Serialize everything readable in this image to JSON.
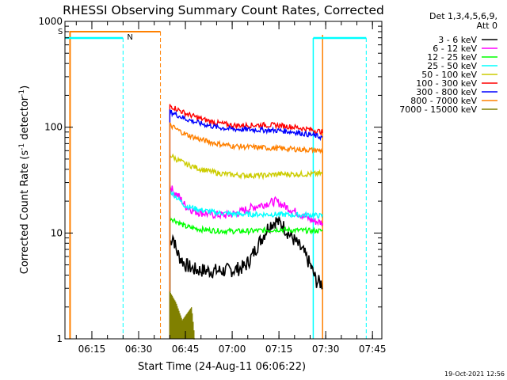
{
  "chart_data": {
    "type": "line",
    "title": "RHESSI Observing Summary Count Rates, Corrected",
    "ylabel_main": "Corrected Count Rate (s",
    "ylabel_sup1": "-1",
    "ylabel_mid": " detector",
    "ylabel_sup2": "-1",
    "ylabel_end": ")",
    "xlabel": "Start Time (24-Aug-11 06:06:22)",
    "y_scale": "log",
    "ylim": [
      1,
      1000
    ],
    "xlim": [
      "06:06:22",
      "07:48:00"
    ],
    "y_ticks": [
      {
        "value": 1,
        "label": "1"
      },
      {
        "value": 10,
        "label": "10"
      },
      {
        "value": 100,
        "label": "100"
      },
      {
        "value": 1000,
        "label": "1000"
      }
    ],
    "x_ticks": [
      {
        "value": "06:15",
        "label": "06:15"
      },
      {
        "value": "06:30",
        "label": "06:30"
      },
      {
        "value": "06:45",
        "label": "06:45"
      },
      {
        "value": "07:00",
        "label": "07:00"
      },
      {
        "value": "07:15",
        "label": "07:15"
      },
      {
        "value": "07:30",
        "label": "07:30"
      },
      {
        "value": "07:45",
        "label": "07:45"
      }
    ],
    "legend_header": [
      "Det 1,3,4,5,6,9,",
      "Att 0"
    ],
    "legend_position": "right",
    "series": [
      {
        "name": "3 - 6 keV",
        "color": "#000000",
        "points": [
          [
            "06:40",
            8
          ],
          [
            "06:41",
            9.5
          ],
          [
            "06:42",
            7
          ],
          [
            "06:43",
            6
          ],
          [
            "06:45",
            5
          ],
          [
            "06:48",
            4.5
          ],
          [
            "06:52",
            4.4
          ],
          [
            "06:57",
            4.4
          ],
          [
            "07:01",
            4.5
          ],
          [
            "07:04",
            4.8
          ],
          [
            "07:06",
            5.8
          ],
          [
            "07:08",
            7.5
          ],
          [
            "07:10",
            9.5
          ],
          [
            "07:12",
            12
          ],
          [
            "07:14",
            13
          ],
          [
            "07:16",
            12
          ],
          [
            "07:18",
            10
          ],
          [
            "07:20",
            8.5
          ],
          [
            "07:23",
            6.5
          ],
          [
            "07:25",
            5
          ],
          [
            "07:27",
            3.5
          ],
          [
            "07:29",
            3.3
          ]
        ]
      },
      {
        "name": "6 - 12 keV",
        "color": "#ff00ff",
        "points": [
          [
            "06:40",
            28
          ],
          [
            "06:41",
            25
          ],
          [
            "06:43",
            22
          ],
          [
            "06:45",
            18
          ],
          [
            "06:48",
            16
          ],
          [
            "06:53",
            15
          ],
          [
            "06:58",
            14.7
          ],
          [
            "07:02",
            15.5
          ],
          [
            "07:05",
            17
          ],
          [
            "07:08",
            18
          ],
          [
            "07:11",
            19
          ],
          [
            "07:14",
            20
          ],
          [
            "07:16",
            18.5
          ],
          [
            "07:20",
            16
          ],
          [
            "07:24",
            14
          ],
          [
            "07:26",
            13
          ],
          [
            "07:29",
            12.5
          ]
        ]
      },
      {
        "name": "12 - 25 keV",
        "color": "#00ff00",
        "points": [
          [
            "06:40",
            14
          ],
          [
            "06:42",
            13
          ],
          [
            "06:45",
            11.5
          ],
          [
            "06:50",
            10.8
          ],
          [
            "06:55",
            10.5
          ],
          [
            "07:00",
            10.4
          ],
          [
            "07:05",
            10.4
          ],
          [
            "07:10",
            10.6
          ],
          [
            "07:15",
            10.8
          ],
          [
            "07:20",
            10.6
          ],
          [
            "07:25",
            10.5
          ],
          [
            "07:29",
            10.5
          ]
        ]
      },
      {
        "name": "25 - 50 keV",
        "color": "#00ffff",
        "points": [
          [
            "06:40",
            25
          ],
          [
            "06:42",
            22
          ],
          [
            "06:45",
            18
          ],
          [
            "06:50",
            16.5
          ],
          [
            "06:55",
            15.5
          ],
          [
            "07:00",
            15.2
          ],
          [
            "07:05",
            15
          ],
          [
            "07:10",
            15
          ],
          [
            "07:15",
            15
          ],
          [
            "07:20",
            14.8
          ],
          [
            "07:25",
            14.8
          ],
          [
            "07:29",
            14.5
          ]
        ]
      },
      {
        "name": "50 - 100 keV",
        "color": "#cccc00",
        "points": [
          [
            "06:40",
            55
          ],
          [
            "06:42",
            50
          ],
          [
            "06:45",
            45
          ],
          [
            "06:50",
            40
          ],
          [
            "06:55",
            37
          ],
          [
            "07:00",
            35.5
          ],
          [
            "07:05",
            35
          ],
          [
            "07:10",
            35
          ],
          [
            "07:15",
            36
          ],
          [
            "07:20",
            36
          ],
          [
            "07:25",
            36
          ],
          [
            "07:29",
            36.5
          ]
        ]
      },
      {
        "name": "100 - 300 keV",
        "color": "#ff0000",
        "points": [
          [
            "06:40",
            160
          ],
          [
            "06:42",
            150
          ],
          [
            "06:45",
            135
          ],
          [
            "06:50",
            120
          ],
          [
            "06:55",
            110
          ],
          [
            "07:00",
            104
          ],
          [
            "07:05",
            104
          ],
          [
            "07:10",
            105
          ],
          [
            "07:15",
            104
          ],
          [
            "07:20",
            100
          ],
          [
            "07:25",
            95
          ],
          [
            "07:29",
            90
          ]
        ]
      },
      {
        "name": "300 - 800 keV",
        "color": "#0000ff",
        "points": [
          [
            "06:40",
            140
          ],
          [
            "06:42",
            132
          ],
          [
            "06:45",
            120
          ],
          [
            "06:50",
            108
          ],
          [
            "06:55",
            100
          ],
          [
            "07:00",
            96
          ],
          [
            "07:05",
            95
          ],
          [
            "07:10",
            94
          ],
          [
            "07:15",
            93
          ],
          [
            "07:20",
            90
          ],
          [
            "07:25",
            85
          ],
          [
            "07:29",
            80
          ]
        ]
      },
      {
        "name": "800 - 7000 keV",
        "color": "#ff8000",
        "points": [
          [
            "06:40",
            105
          ],
          [
            "06:42",
            96
          ],
          [
            "06:45",
            86
          ],
          [
            "06:50",
            76
          ],
          [
            "06:55",
            70
          ],
          [
            "07:00",
            66.5
          ],
          [
            "07:05",
            65
          ],
          [
            "07:10",
            64
          ],
          [
            "07:15",
            63
          ],
          [
            "07:20",
            62
          ],
          [
            "07:25",
            61
          ],
          [
            "07:29",
            60
          ]
        ]
      },
      {
        "name": "7000 - 15000 keV",
        "color": "#808000",
        "points": [
          [
            "06:40",
            2.8
          ],
          [
            "06:42",
            2.2
          ],
          [
            "06:44",
            1.5
          ],
          [
            "06:47",
            2
          ],
          [
            "06:48",
            1
          ]
        ]
      }
    ],
    "flags": [
      {
        "label": "S",
        "color": "#ff8000"
      },
      {
        "label": "N",
        "color": "#00ffff"
      }
    ],
    "footer_timestamp": "19-Oct-2021 12:56"
  }
}
